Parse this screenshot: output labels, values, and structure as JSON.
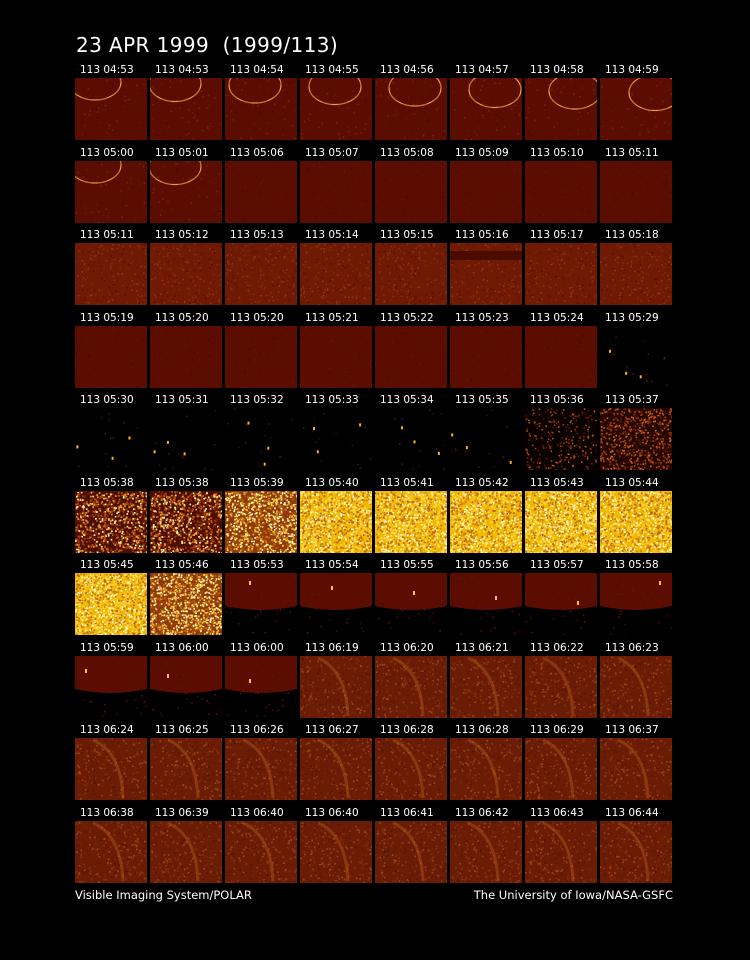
{
  "title": "23 APR 1999  (1999/113)",
  "footer": {
    "left": "Visible Imaging System/POLAR",
    "right": "The University of Iowa/NASA-GSFC"
  },
  "colors": {
    "background": "#000000",
    "dark_frame": "#5a0d00",
    "mid_frame": "#7a2408",
    "aurora_frame": "#8a3a10",
    "bright_frame": "#f0b800",
    "text": "#ffffff"
  },
  "frames": [
    {
      "time": "113 04:53",
      "kind": "arc"
    },
    {
      "time": "113 04:53",
      "kind": "arc"
    },
    {
      "time": "113 04:54",
      "kind": "arc"
    },
    {
      "time": "113 04:55",
      "kind": "arc"
    },
    {
      "time": "113 04:56",
      "kind": "arc"
    },
    {
      "time": "113 04:57",
      "kind": "arc"
    },
    {
      "time": "113 04:58",
      "kind": "arc"
    },
    {
      "time": "113 04:59",
      "kind": "arc"
    },
    {
      "time": "113 05:00",
      "kind": "arc"
    },
    {
      "time": "113 05:01",
      "kind": "arc"
    },
    {
      "time": "113 05:06",
      "kind": "dark"
    },
    {
      "time": "113 05:07",
      "kind": "dark"
    },
    {
      "time": "113 05:08",
      "kind": "dark"
    },
    {
      "time": "113 05:09",
      "kind": "dark"
    },
    {
      "time": "113 05:10",
      "kind": "dark"
    },
    {
      "time": "113 05:11",
      "kind": "dark"
    },
    {
      "time": "113 05:11",
      "kind": "noise"
    },
    {
      "time": "113 05:12",
      "kind": "noise"
    },
    {
      "time": "113 05:13",
      "kind": "noise"
    },
    {
      "time": "113 05:14",
      "kind": "noise"
    },
    {
      "time": "113 05:15",
      "kind": "noise"
    },
    {
      "time": "113 05:16",
      "kind": "band"
    },
    {
      "time": "113 05:17",
      "kind": "noise"
    },
    {
      "time": "113 05:18",
      "kind": "noise"
    },
    {
      "time": "113 05:19",
      "kind": "dark"
    },
    {
      "time": "113 05:20",
      "kind": "dark"
    },
    {
      "time": "113 05:20",
      "kind": "dark"
    },
    {
      "time": "113 05:21",
      "kind": "dark"
    },
    {
      "time": "113 05:22",
      "kind": "dark"
    },
    {
      "time": "113 05:23",
      "kind": "dark"
    },
    {
      "time": "113 05:24",
      "kind": "dark"
    },
    {
      "time": "113 05:29",
      "kind": "stars"
    },
    {
      "time": "113 05:30",
      "kind": "stars"
    },
    {
      "time": "113 05:31",
      "kind": "stars"
    },
    {
      "time": "113 05:32",
      "kind": "stars"
    },
    {
      "time": "113 05:33",
      "kind": "stars"
    },
    {
      "time": "113 05:34",
      "kind": "stars"
    },
    {
      "time": "113 05:35",
      "kind": "stars"
    },
    {
      "time": "113 05:36",
      "kind": "sparse"
    },
    {
      "time": "113 05:37",
      "kind": "sparse2"
    },
    {
      "time": "113 05:38",
      "kind": "bright1"
    },
    {
      "time": "113 05:38",
      "kind": "bright1"
    },
    {
      "time": "113 05:39",
      "kind": "bright2"
    },
    {
      "time": "113 05:40",
      "kind": "bright3"
    },
    {
      "time": "113 05:41",
      "kind": "bright3"
    },
    {
      "time": "113 05:42",
      "kind": "bright3"
    },
    {
      "time": "113 05:43",
      "kind": "bright3"
    },
    {
      "time": "113 05:44",
      "kind": "bright3"
    },
    {
      "time": "113 05:45",
      "kind": "bright3"
    },
    {
      "time": "113 05:46",
      "kind": "bright2"
    },
    {
      "time": "113 05:53",
      "kind": "limb"
    },
    {
      "time": "113 05:54",
      "kind": "limb"
    },
    {
      "time": "113 05:55",
      "kind": "limb"
    },
    {
      "time": "113 05:56",
      "kind": "limb"
    },
    {
      "time": "113 05:57",
      "kind": "limb"
    },
    {
      "time": "113 05:58",
      "kind": "limb"
    },
    {
      "time": "113 05:59",
      "kind": "limb"
    },
    {
      "time": "113 06:00",
      "kind": "limb"
    },
    {
      "time": "113 06:00",
      "kind": "limb"
    },
    {
      "time": "113 06:19",
      "kind": "glow"
    },
    {
      "time": "113 06:20",
      "kind": "glow"
    },
    {
      "time": "113 06:21",
      "kind": "glow"
    },
    {
      "time": "113 06:22",
      "kind": "glow"
    },
    {
      "time": "113 06:23",
      "kind": "glow"
    },
    {
      "time": "113 06:24",
      "kind": "glow"
    },
    {
      "time": "113 06:25",
      "kind": "glow"
    },
    {
      "time": "113 06:26",
      "kind": "glow"
    },
    {
      "time": "113 06:27",
      "kind": "glow"
    },
    {
      "time": "113 06:28",
      "kind": "glow"
    },
    {
      "time": "113 06:28",
      "kind": "glow"
    },
    {
      "time": "113 06:29",
      "kind": "glow"
    },
    {
      "time": "113 06:37",
      "kind": "glow"
    },
    {
      "time": "113 06:38",
      "kind": "glow"
    },
    {
      "time": "113 06:39",
      "kind": "glow"
    },
    {
      "time": "113 06:40",
      "kind": "glow"
    },
    {
      "time": "113 06:40",
      "kind": "glow"
    },
    {
      "time": "113 06:41",
      "kind": "glow"
    },
    {
      "time": "113 06:42",
      "kind": "glow"
    },
    {
      "time": "113 06:43",
      "kind": "glow"
    },
    {
      "time": "113 06:44",
      "kind": "glow"
    }
  ]
}
